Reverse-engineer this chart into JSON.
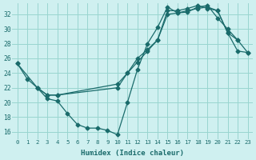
{
  "xlabel": "Humidex (Indice chaleur)",
  "bg_color": "#cff0f0",
  "grid_color": "#99d5d0",
  "line_color": "#1a6b6b",
  "xlim": [
    -0.5,
    23.5
  ],
  "ylim": [
    15.0,
    33.5
  ],
  "yticks": [
    16,
    18,
    20,
    22,
    24,
    26,
    28,
    30,
    32
  ],
  "xticks": [
    0,
    1,
    2,
    3,
    4,
    5,
    6,
    7,
    8,
    9,
    10,
    11,
    12,
    13,
    14,
    15,
    16,
    17,
    18,
    19,
    20,
    21,
    22,
    23
  ],
  "line1_x": [
    0,
    1,
    2,
    3,
    4,
    5,
    6,
    7,
    8,
    9,
    10,
    11,
    12,
    13,
    14,
    15,
    16,
    17,
    18,
    19,
    20,
    21,
    22
  ],
  "line1_y": [
    25.3,
    23.2,
    22.0,
    20.5,
    20.2,
    18.5,
    17.0,
    16.5,
    16.5,
    16.2,
    15.6,
    20.0,
    24.5,
    28.0,
    30.2,
    33.0,
    32.2,
    32.3,
    33.0,
    33.2,
    31.5,
    30.0,
    28.5
  ],
  "line2_x": [
    2,
    3,
    4,
    10,
    11,
    12,
    13,
    14,
    15,
    16,
    17,
    18,
    19,
    20,
    21,
    22,
    23
  ],
  "line2_y": [
    22.0,
    21.0,
    21.0,
    22.0,
    24.0,
    26.0,
    27.2,
    28.5,
    32.5,
    32.5,
    32.8,
    33.2,
    32.8,
    32.5,
    29.5,
    27.0,
    26.8
  ],
  "line3_x": [
    0,
    2,
    3,
    4,
    10,
    11,
    12,
    13,
    14,
    15,
    16,
    17,
    18,
    19,
    20,
    21,
    22,
    23
  ],
  "line3_y": [
    25.3,
    22.0,
    21.0,
    21.0,
    22.5,
    24.0,
    25.5,
    27.0,
    28.5,
    32.0,
    32.2,
    32.5,
    32.8,
    33.0,
    32.5,
    29.5,
    28.5,
    26.8
  ]
}
